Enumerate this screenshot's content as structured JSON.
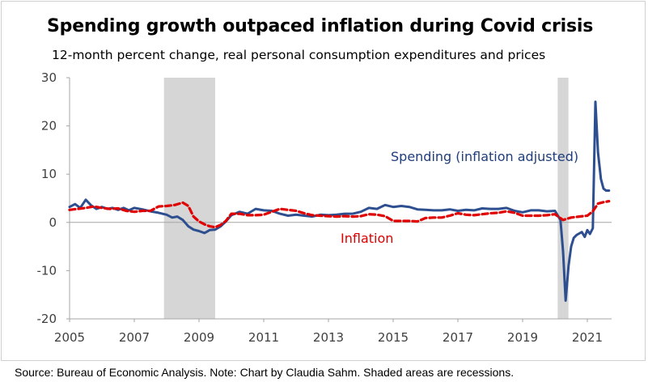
{
  "chart_data": {
    "type": "line",
    "title": "Spending growth outpaced inflation during Covid crisis",
    "subtitle": "12-month percent change, real personal consumption expenditures and prices",
    "source": "Source: Bureau of Economic Analysis. Note: Chart by Claudia Sahm. Shaded areas are recessions.",
    "ylim": [
      -20,
      30
    ],
    "y_ticks": [
      30,
      20,
      10,
      0,
      -10,
      -20
    ],
    "xlim": [
      2005.0,
      2021.75
    ],
    "x_ticks": [
      "2005",
      "2007",
      "2009",
      "2011",
      "2013",
      "2015",
      "2017",
      "2019",
      "2021"
    ],
    "grid": false,
    "recessions": [
      [
        2007.917,
        2009.5
      ],
      [
        2020.083,
        2020.417
      ]
    ],
    "series": [
      {
        "name": "Spending (inflation adjusted)",
        "color": "#2e4f8f",
        "style": "solid",
        "x": [
          2005.0,
          2005.17,
          2005.33,
          2005.5,
          2005.67,
          2005.83,
          2006.0,
          2006.17,
          2006.33,
          2006.5,
          2006.67,
          2006.83,
          2007.0,
          2007.25,
          2007.5,
          2007.75,
          2008.0,
          2008.17,
          2008.33,
          2008.5,
          2008.67,
          2008.83,
          2009.0,
          2009.17,
          2009.33,
          2009.5,
          2009.67,
          2009.83,
          2010.0,
          2010.25,
          2010.5,
          2010.75,
          2011.0,
          2011.25,
          2011.5,
          2011.75,
          2012.0,
          2012.25,
          2012.5,
          2012.75,
          2013.0,
          2013.25,
          2013.5,
          2013.75,
          2014.0,
          2014.25,
          2014.5,
          2014.75,
          2015.0,
          2015.25,
          2015.5,
          2015.75,
          2016.0,
          2016.25,
          2016.5,
          2016.75,
          2017.0,
          2017.25,
          2017.5,
          2017.75,
          2018.0,
          2018.25,
          2018.5,
          2018.75,
          2019.0,
          2019.25,
          2019.5,
          2019.75,
          2020.0,
          2020.17,
          2020.25,
          2020.33,
          2020.42,
          2020.5,
          2020.58,
          2020.67,
          2020.75,
          2020.83,
          2020.92,
          2021.0,
          2021.08,
          2021.17,
          2021.25,
          2021.33,
          2021.42,
          2021.5,
          2021.58,
          2021.67
        ],
        "values": [
          3.2,
          3.8,
          3.0,
          4.7,
          3.5,
          2.8,
          3.2,
          2.8,
          3.0,
          2.6,
          3.0,
          2.5,
          3.0,
          2.7,
          2.3,
          2.0,
          1.6,
          1.0,
          1.2,
          0.5,
          -0.8,
          -1.5,
          -1.8,
          -2.2,
          -1.6,
          -1.5,
          -0.8,
          0.2,
          1.5,
          2.2,
          1.8,
          2.8,
          2.5,
          2.4,
          1.8,
          1.4,
          1.6,
          1.4,
          1.2,
          1.6,
          1.5,
          1.6,
          1.8,
          1.8,
          2.2,
          3.0,
          2.8,
          3.6,
          3.2,
          3.4,
          3.2,
          2.7,
          2.6,
          2.5,
          2.5,
          2.7,
          2.4,
          2.6,
          2.5,
          2.9,
          2.8,
          2.8,
          3.0,
          2.4,
          2.1,
          2.5,
          2.5,
          2.3,
          2.4,
          0.5,
          -6.0,
          -16.2,
          -9.0,
          -5.0,
          -3.2,
          -2.6,
          -2.3,
          -2.0,
          -3.0,
          -1.6,
          -2.4,
          -1.2,
          25.0,
          14.5,
          9.0,
          7.0,
          6.6,
          6.6
        ]
      },
      {
        "name": "Inflation",
        "color": "#e00000",
        "style": "dashed",
        "x": [
          2005.0,
          2005.25,
          2005.5,
          2005.75,
          2006.0,
          2006.25,
          2006.5,
          2006.75,
          2007.0,
          2007.25,
          2007.5,
          2007.75,
          2008.0,
          2008.25,
          2008.5,
          2008.67,
          2008.83,
          2009.0,
          2009.17,
          2009.33,
          2009.5,
          2009.67,
          2009.83,
          2010.0,
          2010.25,
          2010.5,
          2010.75,
          2011.0,
          2011.25,
          2011.5,
          2011.75,
          2012.0,
          2012.25,
          2012.5,
          2012.75,
          2013.0,
          2013.25,
          2013.5,
          2013.75,
          2014.0,
          2014.25,
          2014.5,
          2014.75,
          2015.0,
          2015.25,
          2015.5,
          2015.75,
          2016.0,
          2016.25,
          2016.5,
          2016.75,
          2017.0,
          2017.25,
          2017.5,
          2017.75,
          2018.0,
          2018.25,
          2018.5,
          2018.75,
          2019.0,
          2019.25,
          2019.5,
          2019.75,
          2020.0,
          2020.25,
          2020.5,
          2020.75,
          2021.0,
          2021.17,
          2021.33,
          2021.5,
          2021.67
        ],
        "values": [
          2.6,
          2.8,
          3.0,
          3.3,
          3.0,
          2.8,
          2.9,
          2.4,
          2.2,
          2.4,
          2.4,
          3.3,
          3.4,
          3.6,
          4.1,
          3.4,
          1.2,
          0.2,
          -0.4,
          -0.8,
          -1.0,
          -0.5,
          0.3,
          1.8,
          1.8,
          1.5,
          1.5,
          1.6,
          2.2,
          2.8,
          2.6,
          2.4,
          1.9,
          1.5,
          1.4,
          1.3,
          1.2,
          1.3,
          1.2,
          1.3,
          1.7,
          1.6,
          1.3,
          0.3,
          0.3,
          0.3,
          0.2,
          0.9,
          1.0,
          1.0,
          1.4,
          1.9,
          1.6,
          1.5,
          1.7,
          1.9,
          2.0,
          2.3,
          2.0,
          1.4,
          1.4,
          1.4,
          1.5,
          1.7,
          0.5,
          1.0,
          1.2,
          1.4,
          2.3,
          3.9,
          4.2,
          4.4
        ]
      }
    ],
    "annotations": {
      "spending": "Spending (inflation adjusted)",
      "inflation": "Inflation"
    }
  }
}
